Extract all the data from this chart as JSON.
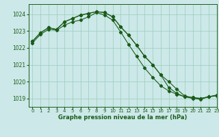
{
  "title": "Graphe pression niveau de la mer (hPa)",
  "bg_color": "#cce8e8",
  "grid_color": "#99ccbb",
  "line_color": "#1a5c1a",
  "marker_color": "#1a5c1a",
  "xlim": [
    -0.5,
    23
  ],
  "ylim": [
    1018.5,
    1024.6
  ],
  "yticks": [
    1019,
    1020,
    1021,
    1022,
    1023,
    1024
  ],
  "xticks": [
    0,
    1,
    2,
    3,
    4,
    5,
    6,
    7,
    8,
    9,
    10,
    11,
    12,
    13,
    14,
    15,
    16,
    17,
    18,
    19,
    20,
    21,
    22,
    23
  ],
  "series1": [
    1022.4,
    1022.9,
    1023.2,
    1023.1,
    1023.55,
    1023.75,
    1023.95,
    1024.05,
    1024.15,
    1024.1,
    1023.85,
    1023.25,
    1022.75,
    1022.15,
    1021.5,
    1021.0,
    1020.4,
    1020.0,
    1019.55,
    1019.15,
    1019.05,
    1019.0,
    1019.1,
    1019.2
  ],
  "series2": [
    1022.4,
    1022.9,
    1023.2,
    1023.1,
    1023.55,
    1023.75,
    1023.95,
    1024.05,
    1024.15,
    1024.1,
    1023.85,
    1023.25,
    1022.75,
    1022.15,
    1021.5,
    1021.0,
    1020.4,
    1019.65,
    1019.3,
    1019.1,
    1019.05,
    1019.0,
    1019.1,
    1019.2
  ],
  "series3": [
    1022.3,
    1022.8,
    1023.1,
    1023.05,
    1023.35,
    1023.55,
    1023.65,
    1023.85,
    1024.1,
    1023.95,
    1023.65,
    1022.95,
    1022.2,
    1021.5,
    1020.8,
    1020.25,
    1019.75,
    1019.45,
    1019.25,
    1019.1,
    1019.0,
    1018.95,
    1019.1,
    1019.15
  ]
}
